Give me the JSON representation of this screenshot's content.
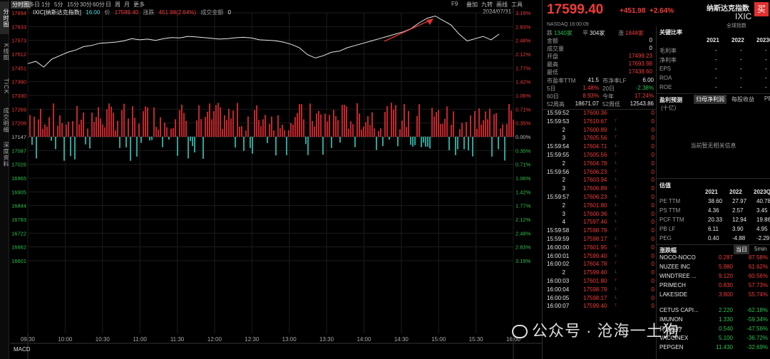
{
  "leftnav": [
    {
      "label": "分时图",
      "active": true
    },
    {
      "label": "K线图",
      "active": false
    },
    {
      "label": "TICK",
      "active": false
    },
    {
      "label": "成交明细",
      "active": false
    },
    {
      "label": "深度资料",
      "active": false
    }
  ],
  "toolbar": {
    "periods": [
      "多日",
      "1分",
      "5分",
      "15分",
      "30分",
      "60分",
      "日",
      "周",
      "月",
      "更多"
    ],
    "right": [
      "F9",
      "叠加",
      "九转",
      "画线",
      "工具"
    ],
    "window_buttons": [
      "—",
      "▭",
      "✕"
    ],
    "date": "2024/07/31"
  },
  "infobar": {
    "symbol": "IXIC[纳斯达克指数]",
    "time": "16:00",
    "price_label": "价",
    "price": "17599.40",
    "change_label": "涨跌",
    "change": "451.98(2.64%)",
    "volume_label": "成交金额",
    "volume": "0"
  },
  "chart_data": {
    "type": "line",
    "x_ticks": [
      "09:30",
      "10:00",
      "10:30",
      "11:00",
      "11:30",
      "12:00",
      "12:30",
      "13:00",
      "13:30",
      "14:00",
      "14:30",
      "15:00",
      "15:30",
      "16:00"
    ],
    "y_left": [
      "17694",
      "17633",
      "17573",
      "17512",
      "17451",
      "17390",
      "17330",
      "17269",
      "17208",
      "17147",
      "17087",
      "17026",
      "16965",
      "16905",
      "16844",
      "16783",
      "16722",
      "16662",
      "16601"
    ],
    "y_right": [
      "3.19%",
      "2.83%",
      "2.48%",
      "2.12%",
      "1.77%",
      "1.42%",
      "1.06%",
      "0.71%",
      "0.35%",
      "0.00%",
      "0.35%",
      "0.71%",
      "1.06%",
      "1.42%",
      "1.77%",
      "2.12%",
      "2.48%",
      "2.83%",
      "3.19%"
    ],
    "y_range": [
      16601,
      17694
    ],
    "prev_close": 17147.42,
    "series": [
      {
        "values": [
          17470,
          17480,
          17455,
          17490,
          17505,
          17520,
          17530,
          17545,
          17550,
          17560,
          17562,
          17565,
          17570,
          17580,
          17575,
          17578,
          17572,
          17580,
          17585,
          17583,
          17590,
          17588,
          17585,
          17582,
          17578,
          17580,
          17584,
          17586,
          17583,
          17575,
          17573,
          17571,
          17565,
          17555,
          17540,
          17510,
          17495,
          17505,
          17520,
          17525,
          17540,
          17550,
          17560,
          17570,
          17580,
          17590,
          17600,
          17610,
          17625,
          17650,
          17670,
          17680,
          17660,
          17640,
          17600,
          17570,
          17580,
          17590,
          17575,
          17600
        ]
      }
    ],
    "bottom_label": "MACD"
  },
  "quote": {
    "price": "17599.40",
    "change": "+451.98",
    "pct": "+2.64%",
    "name": "纳斯达克指数",
    "code": "IXIC",
    "buy": "买",
    "sub": "NASDAQ  16:00:09",
    "tag": "全球指数",
    "breadth": [
      {
        "k": "跌",
        "v": "1340家"
      },
      {
        "k": "平",
        "v": "304家"
      },
      {
        "k": "涨",
        "v": "1848家"
      }
    ],
    "fields": [
      {
        "k": "金额",
        "v": "0",
        "c": "white"
      },
      {
        "k": "成交量",
        "v": "0",
        "c": "white"
      },
      {
        "k": "开盘",
        "v": "17499.23",
        "c": "red"
      },
      {
        "k": "最高",
        "v": "17693.98",
        "c": "red"
      },
      {
        "k": "最低",
        "v": "17438.60",
        "c": "red"
      }
    ],
    "pairs": [
      {
        "k1": "市盈率TTM",
        "v1": "41.5",
        "c1": "white",
        "k2": "市净率LF",
        "v2": "6.00",
        "c2": "white"
      },
      {
        "k1": "5日",
        "v1": "1.48%",
        "c1": "red",
        "k2": "20日",
        "v2": "-2.38%",
        "c2": "green"
      },
      {
        "k1": "60日",
        "v1": "8.93%",
        "c1": "red",
        "k2": "今年",
        "v2": "17.24%",
        "c2": "red"
      },
      {
        "k1": "52周高",
        "v1": "18671.07",
        "c1": "white",
        "k2": "52周低",
        "v2": "12543.86",
        "c2": "white"
      }
    ]
  },
  "ticks": [
    {
      "t": "15:59:52",
      "p": "17600.36",
      "a": "",
      "v": "0"
    },
    {
      "t": "15:59:53",
      "p": "17610.67",
      "a": "↑",
      "v": "0"
    },
    {
      "t": "2",
      "p": "17600.89",
      "a": "↓",
      "v": "0"
    },
    {
      "t": "3",
      "p": "17605.56",
      "a": "↑",
      "v": "0"
    },
    {
      "t": "15:59:54",
      "p": "17604.71",
      "a": "↓",
      "v": "0"
    },
    {
      "t": "15:59:55",
      "p": "17605.56",
      "a": "↑",
      "v": "0"
    },
    {
      "t": "2",
      "p": "17604.78",
      "a": "↓",
      "v": "0"
    },
    {
      "t": "15:59:56",
      "p": "17606.23",
      "a": "↑",
      "v": "0"
    },
    {
      "t": "2",
      "p": "17603.94",
      "a": "↓",
      "v": "0"
    },
    {
      "t": "3",
      "p": "17606.89",
      "a": "↑",
      "v": "0"
    },
    {
      "t": "15:59:57",
      "p": "17606.23",
      "a": "↓",
      "v": "0"
    },
    {
      "t": "2",
      "p": "17601.80",
      "a": "↓",
      "v": "0"
    },
    {
      "t": "3",
      "p": "17600.36",
      "a": "↓",
      "v": "0"
    },
    {
      "t": "4",
      "p": "17597.46",
      "a": "↓",
      "v": "0"
    },
    {
      "t": "15:59:58",
      "p": "17598.79",
      "a": "↑",
      "v": "0"
    },
    {
      "t": "15:59:59",
      "p": "17598.17",
      "a": "↓",
      "v": "0"
    },
    {
      "t": "16:00:00",
      "p": "17601.95",
      "a": "↑",
      "v": "0"
    },
    {
      "t": "16:00:01",
      "p": "17599.40",
      "a": "↓",
      "v": "0"
    },
    {
      "t": "16:00:02",
      "p": "17604.78",
      "a": "↑",
      "v": "0"
    },
    {
      "t": "2",
      "p": "17599.40",
      "a": "↓",
      "v": "0"
    },
    {
      "t": "16:00:03",
      "p": "17601.80",
      "a": "↑",
      "v": "0"
    },
    {
      "t": "16:00:04",
      "p": "17598.79",
      "a": "↓",
      "v": "0"
    },
    {
      "t": "16:00:05",
      "p": "17598.17",
      "a": "↓",
      "v": "0"
    },
    {
      "t": "16:00:07",
      "p": "17599.40",
      "a": "↑",
      "v": "0"
    }
  ],
  "ratios": {
    "title": "关键比率",
    "years": [
      "2021",
      "2022",
      "2023Q"
    ],
    "rows": [
      {
        "k": "毛利率",
        "v": [
          "-",
          "-",
          "-"
        ]
      },
      {
        "k": "净利率",
        "v": [
          "-",
          "-",
          "-"
        ]
      },
      {
        "k": "EPS",
        "v": [
          "-",
          "-",
          "-"
        ]
      },
      {
        "k": "ROA",
        "v": [
          "-",
          "-",
          "-"
        ]
      },
      {
        "k": "ROE",
        "v": [
          "-",
          "-",
          "-"
        ]
      }
    ]
  },
  "forecast": {
    "title": "盈利预测",
    "tabs": [
      "归母净利润",
      "每股收益",
      "PE"
    ],
    "unit": "(十亿)",
    "empty": "当前暂无相关信息"
  },
  "valuation": {
    "title": "估值",
    "years": [
      "2021",
      "2022",
      "2023Q"
    ],
    "rows": [
      {
        "k": "PE TTM",
        "v": [
          "38.60",
          "27.97",
          "40.78"
        ]
      },
      {
        "k": "PS TTM",
        "v": [
          "4.36",
          "2.57",
          "3.45"
        ]
      },
      {
        "k": "PCF TTM",
        "v": [
          "20.33",
          "12.94",
          "19.86"
        ]
      },
      {
        "k": "PB LF",
        "v": [
          "6.11",
          "3.90",
          "4.95"
        ]
      },
      {
        "k": "PEG",
        "v": [
          "0.40",
          "-4.88",
          "-2.29"
        ]
      }
    ]
  },
  "movers": {
    "title": "涨跌幅",
    "tabs": [
      "当日",
      "5min"
    ],
    "up": [
      {
        "n": "NOCO-NOCO",
        "p": "0.287",
        "c": "87.58%"
      },
      {
        "n": "NUZEE INC",
        "p": "5.980",
        "c": "61.62%"
      },
      {
        "n": "WINDTREE ...",
        "p": "9.120",
        "c": "60.56%"
      },
      {
        "n": "PRIMECH",
        "p": "0.830",
        "c": "57.73%"
      },
      {
        "n": "LAKESIDE",
        "p": "3.800",
        "c": "55.74%"
      }
    ],
    "down": [
      {
        "n": "CETUS CAPI...",
        "p": "2.220",
        "c": "-62.18%"
      },
      {
        "n": "IMUNON",
        "p": "1.330",
        "c": "-59.34%"
      },
      {
        "n": "环球医疗",
        "p": "0.540",
        "c": "-47.56%"
      },
      {
        "n": "VACCINEX",
        "p": "5.100",
        "c": "-36.72%"
      },
      {
        "n": "PEPGEN",
        "p": "11.430",
        "c": "-32.69%"
      }
    ]
  },
  "watermark": "公众号 · 沧海一土狗"
}
